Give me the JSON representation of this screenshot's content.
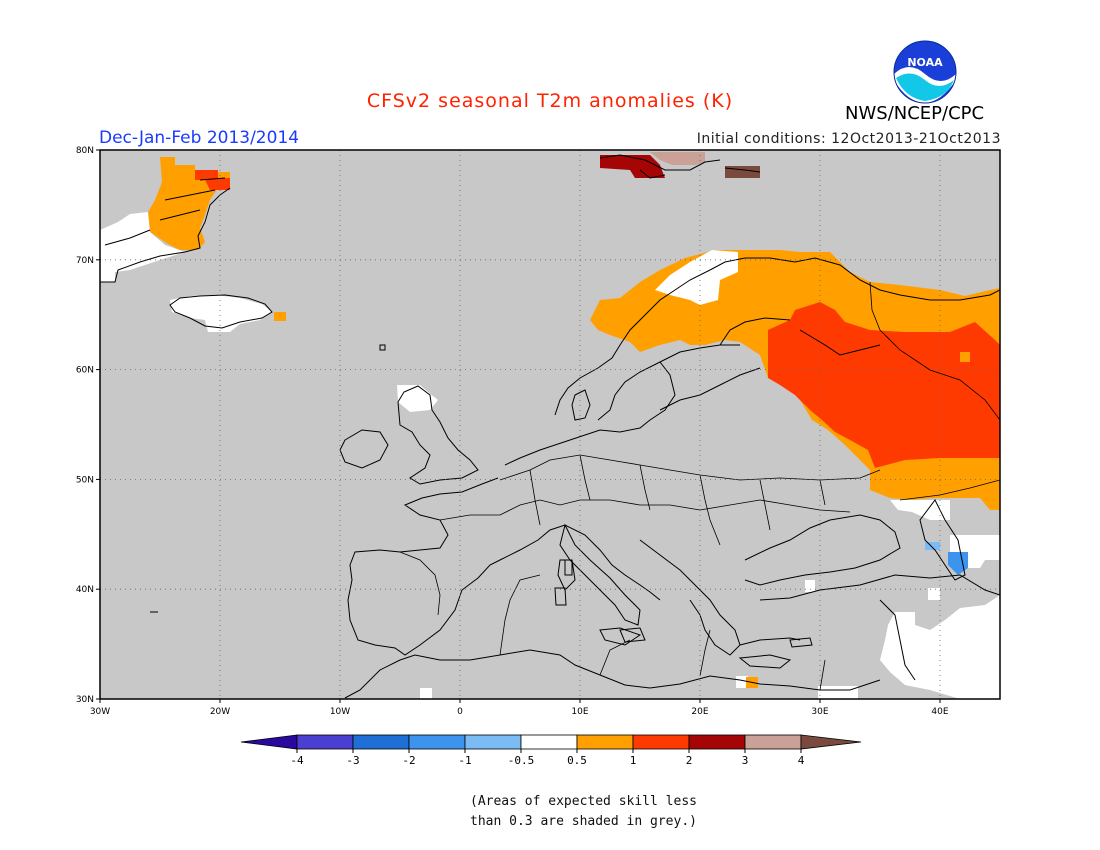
{
  "title": "CFSv2 seasonal T2m anomalies (K)",
  "season": "Dec-Jan-Feb 2013/2014",
  "initial_conditions": "Initial conditions: 12Oct2013-21Oct2013",
  "agency": "NWS/NCEP/CPC",
  "logo_text": "NOAA",
  "colors": {
    "title": "#ff2200",
    "season": "#1a3bff",
    "grey_mask": "#c8c8c8",
    "land_outline": "#000000"
  },
  "map": {
    "lon_range": [
      -30,
      45
    ],
    "lat_range": [
      30,
      80
    ],
    "lat_ticks": [
      {
        "value": 80,
        "label": "80N"
      },
      {
        "value": 70,
        "label": "70N"
      },
      {
        "value": 60,
        "label": "60N"
      },
      {
        "value": 50,
        "label": "50N"
      },
      {
        "value": 40,
        "label": "40N"
      },
      {
        "value": 30,
        "label": "30N"
      }
    ],
    "lon_ticks": [
      {
        "value": -30,
        "label": "30W"
      },
      {
        "value": -20,
        "label": "20W"
      },
      {
        "value": -10,
        "label": "10W"
      },
      {
        "value": 0,
        "label": "0"
      },
      {
        "value": 10,
        "label": "10E"
      },
      {
        "value": 20,
        "label": "20E"
      },
      {
        "value": 30,
        "label": "30E"
      },
      {
        "value": 40,
        "label": "40E"
      }
    ],
    "grid": "dotted"
  },
  "legend": {
    "labels": [
      "-4",
      "-3",
      "-2",
      "-1",
      "-0.5",
      "0.5",
      "1",
      "2",
      "3",
      "4"
    ],
    "colors": [
      "#2a0a9e",
      "#4a3fd0",
      "#1f6fd6",
      "#3d94ee",
      "#7bbcf5",
      "#ffffff",
      "#ffa000",
      "#ff3a00",
      "#a50505",
      "#c9a196",
      "#7a4a3e"
    ]
  },
  "note_lines": [
    "(Areas of expected skill less",
    "than 0.3 are shaded in grey.)"
  ]
}
